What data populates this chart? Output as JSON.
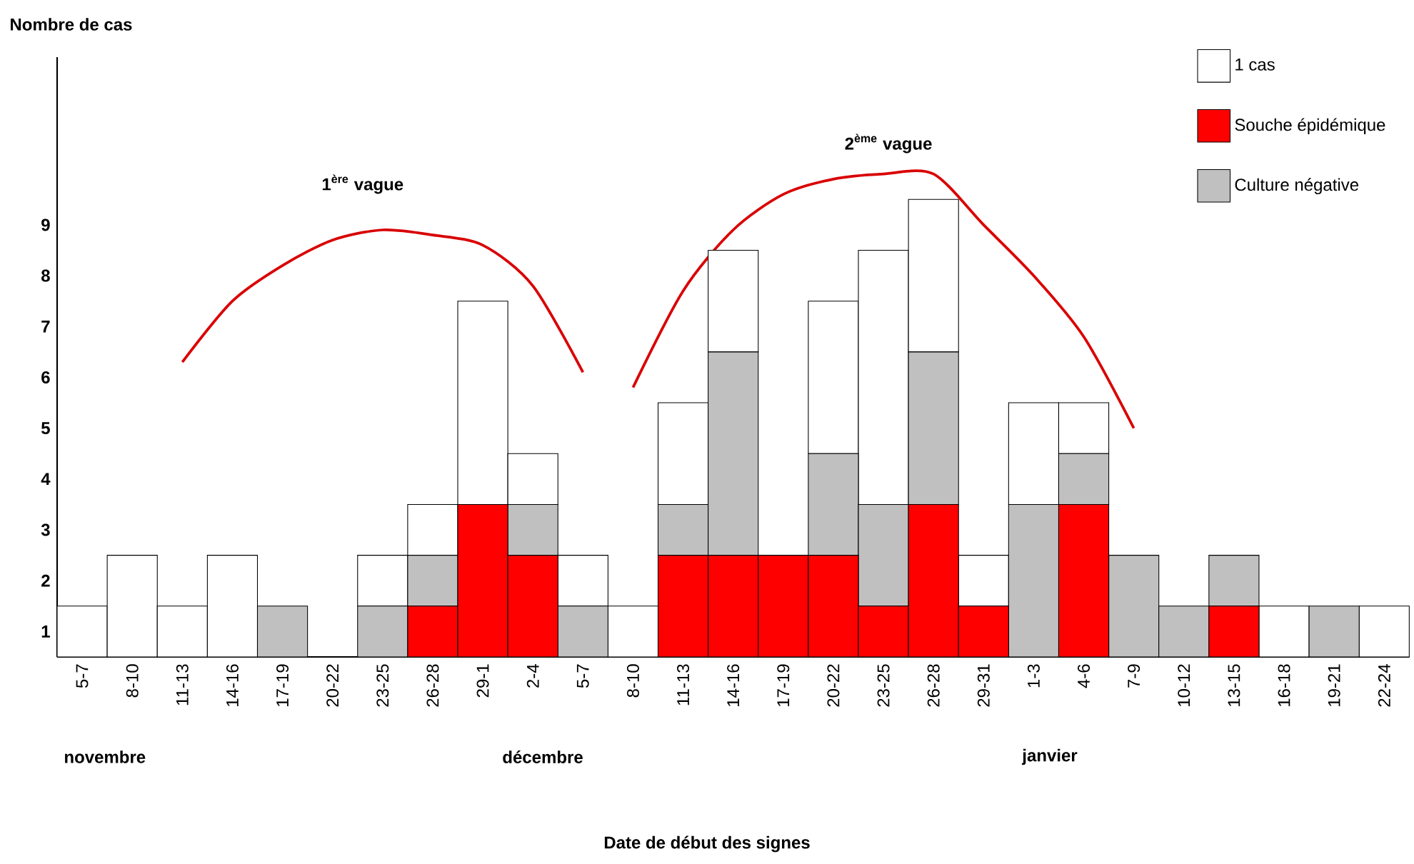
{
  "chart_data": {
    "type": "bar",
    "stacked": true,
    "ylabel": "Nombre de cas",
    "categories": [
      "5-7",
      "8-10",
      "11-13",
      "14-16",
      "17-19",
      "20-22",
      "23-25",
      "26-28",
      "29-1",
      "2-4",
      "5-7",
      "8-10",
      "11-13",
      "14-16",
      "17-19",
      "20-22",
      "23-25",
      "26-28",
      "29-31",
      "1-3",
      "4-6",
      "7-9",
      "10-12",
      "13-15",
      "16-18",
      "19-21",
      "22-24"
    ],
    "series": [
      {
        "name": "Souche épidémique",
        "color": "#ff0000",
        "values": [
          0,
          0,
          0,
          0,
          0,
          0,
          0,
          1,
          3,
          2,
          0,
          0,
          2,
          2,
          2,
          2,
          1,
          3,
          1,
          0,
          3,
          0,
          0,
          1,
          0,
          0,
          0
        ]
      },
      {
        "name": "Culture négative",
        "color": "#c0c0c0",
        "values": [
          0,
          0,
          0,
          0,
          1,
          0,
          1,
          1,
          0,
          1,
          1,
          0,
          1,
          4,
          0,
          2,
          2,
          3,
          0,
          3,
          1,
          2,
          1,
          1,
          0,
          1,
          0
        ]
      },
      {
        "name": "1 cas",
        "color": "#ffffff",
        "values": [
          1,
          2,
          1,
          2,
          0,
          0,
          1,
          1,
          4,
          1,
          1,
          1,
          2,
          2,
          0,
          3,
          5,
          3,
          1,
          2,
          1,
          0,
          0,
          0,
          1,
          0,
          1
        ]
      },
      {
        "type": "line",
        "color": "#d90000",
        "values": [
          null,
          null,
          5.8,
          7.0,
          7.7,
          8.2,
          8.4,
          8.3,
          8.1,
          7.3,
          5.6,
          null,
          null,
          null,
          null,
          null,
          null,
          null,
          null,
          null,
          null,
          null,
          null,
          null,
          null,
          null,
          null
        ]
      },
      {
        "type": "line",
        "color": "#d90000",
        "values": [
          null,
          null,
          null,
          null,
          null,
          null,
          null,
          null,
          null,
          null,
          null,
          5.3,
          7.2,
          8.4,
          9.1,
          9.4,
          9.5,
          9.5,
          8.5,
          7.5,
          6.3,
          4.5,
          null,
          null,
          null,
          null,
          null
        ]
      }
    ],
    "ylim": [
      0,
      11.8
    ],
    "yticks": [
      {
        "value": 0.5,
        "label": "1"
      },
      {
        "value": 1.5,
        "label": "2"
      },
      {
        "value": 2.5,
        "label": "3"
      },
      {
        "value": 3.5,
        "label": "4"
      },
      {
        "value": 4.5,
        "label": "5"
      },
      {
        "value": 5.5,
        "label": "6"
      },
      {
        "value": 6.5,
        "label": "7"
      },
      {
        "value": 7.5,
        "label": "8"
      },
      {
        "value": 8.5,
        "label": "9"
      }
    ],
    "legend": "top right",
    "annotations": [
      "1$^{ère}$ vague",
      "2$^{ème}$ vague",
      "novembre",
      "décembre",
      "janvier",
      "Date de début des signes"
    ]
  }
}
